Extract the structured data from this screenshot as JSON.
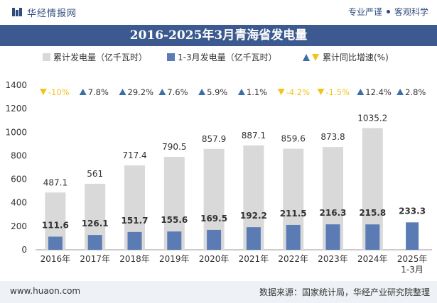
{
  "header": {
    "brand": "华经情报网",
    "slogan_a": "专业严谨",
    "slogan_b": "客观科学"
  },
  "title": "2016-2025年3月青海省发电量",
  "legend": {
    "cumulative": "累计发电量（亿千瓦时）",
    "q1": "1-3月发电量（亿千瓦时）",
    "growth": "累计同比增速(%)"
  },
  "footer": {
    "site": "www.huaon.com",
    "source": "数据来源：国家统计局，华经产业研究院整理"
  },
  "colors": {
    "cumulative_bar": "#d9d9d9",
    "q1_bar": "#5b7bb5",
    "up_marker": "#3c6ea6",
    "down_marker": "#f0c419",
    "header_bg": "#3c5a8f"
  },
  "chart_data": {
    "type": "bar",
    "categories": [
      "2016年",
      "2017年",
      "2018年",
      "2019年",
      "2020年",
      "2021年",
      "2022年",
      "2023年",
      "2024年",
      "2025年\n1-3月"
    ],
    "series": [
      {
        "name": "累计发电量（亿千瓦时）",
        "values": [
          487.1,
          561,
          717.4,
          790.5,
          857.9,
          887.1,
          859.6,
          873.8,
          1035.2,
          null
        ]
      },
      {
        "name": "1-3月发电量（亿千瓦时）",
        "values": [
          111.6,
          126.1,
          151.7,
          155.6,
          169.5,
          192.2,
          211.5,
          216.3,
          215.8,
          233.3
        ]
      },
      {
        "name": "累计同比增速(%)",
        "values": [
          -10,
          7.8,
          29.2,
          7.6,
          5.9,
          1.1,
          -4.2,
          -1.5,
          12.4,
          2.8
        ]
      }
    ],
    "value_labels_cumulative": [
      "487.1",
      "561",
      "717.4",
      "790.5",
      "857.9",
      "887.1",
      "859.6",
      "873.8",
      "1035.2",
      ""
    ],
    "value_labels_q1": [
      "111.6",
      "126.1",
      "151.7",
      "155.6",
      "169.5",
      "192.2",
      "211.5",
      "216.3",
      "215.8",
      "233.3"
    ],
    "growth_labels": [
      "-10%",
      "7.8%",
      "29.2%",
      "7.6%",
      "5.9%",
      "1.1%",
      "-4.2%",
      "-1.5%",
      "12.4%",
      "2.8%"
    ],
    "yticks": [
      "0",
      "200",
      "400",
      "600",
      "800",
      "1000",
      "1200",
      "1400"
    ],
    "ylim": [
      0,
      1400
    ],
    "grid": false,
    "legend_position": "top"
  }
}
